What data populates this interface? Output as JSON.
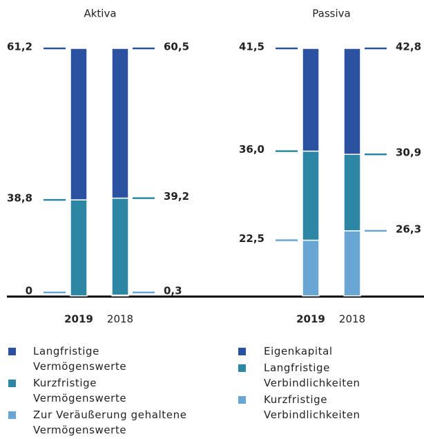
{
  "chart_data": [
    {
      "type": "bar",
      "stacked": true,
      "title": "Aktiva",
      "categories": [
        "2019",
        "2018"
      ],
      "ylim": [
        0,
        100
      ],
      "series": [
        {
          "name": "Langfristige Vermögenswerte",
          "color": "#2a52a0",
          "values": [
            61.2,
            60.5
          ],
          "value_labels": [
            "61,2",
            "60,5"
          ]
        },
        {
          "name": "Kurzfristige Vermögenswerte",
          "color": "#2e86a5",
          "values": [
            38.8,
            39.2
          ],
          "value_labels": [
            "38,8",
            "39,2"
          ]
        },
        {
          "name": "Zur Veräußerung gehaltene Vermögenswerte",
          "color": "#6aa6d4",
          "values": [
            0,
            0.3
          ],
          "value_labels": [
            "0",
            "0,3"
          ]
        }
      ]
    },
    {
      "type": "bar",
      "stacked": true,
      "title": "Passiva",
      "categories": [
        "2019",
        "2018"
      ],
      "ylim": [
        0,
        100
      ],
      "series": [
        {
          "name": "Eigenkapital",
          "color": "#2a52a0",
          "values": [
            41.5,
            42.8
          ],
          "value_labels": [
            "41,5",
            "42,8"
          ]
        },
        {
          "name": "Langfristige Verbindlichkeiten",
          "color": "#2e86a5",
          "values": [
            36.0,
            30.9
          ],
          "value_labels": [
            "36,0",
            "30,9"
          ]
        },
        {
          "name": "Kurzfristige Verbindlichkeiten",
          "color": "#6aa6d4",
          "values": [
            22.5,
            26.3
          ],
          "value_labels": [
            "22,5",
            "26,3"
          ]
        }
      ]
    }
  ]
}
